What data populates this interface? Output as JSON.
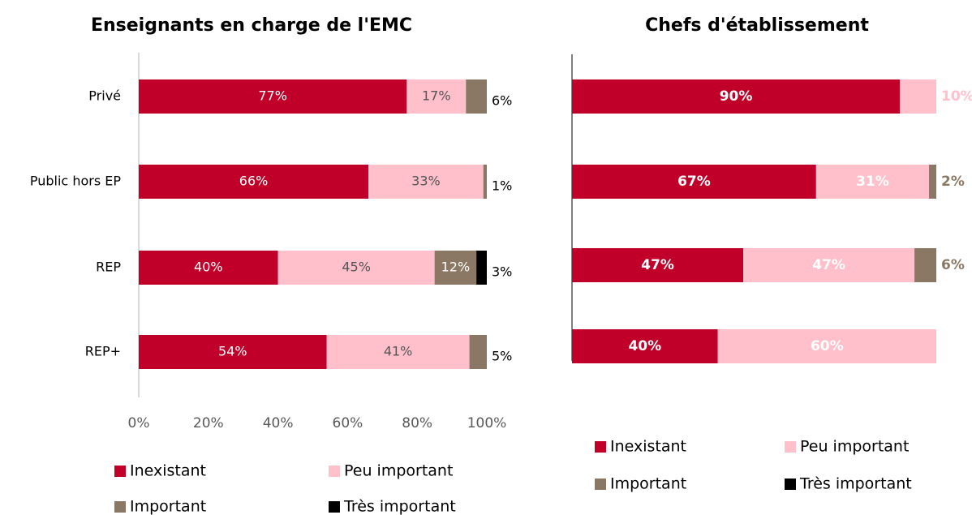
{
  "chart_data": [
    {
      "type": "stacked-barh",
      "title": "Enseignants en charge de l'EMC",
      "categories": [
        "Privé",
        "Public hors EP",
        "REP",
        "REP+"
      ],
      "series": [
        {
          "name": "Inexistant",
          "color": "#c00029",
          "values": [
            77,
            66,
            40,
            54
          ],
          "value_labels": [
            "77%",
            "66%",
            "40%",
            "54%"
          ]
        },
        {
          "name": "Peu important",
          "color": "#ffc0cb",
          "values": [
            17,
            33,
            45,
            41
          ],
          "value_labels": [
            "17%",
            "33%",
            "45%",
            "41%"
          ]
        },
        {
          "name": "Important",
          "color": "#8b7864",
          "values": [
            6,
            1,
            12,
            5
          ],
          "value_labels": [
            "6%",
            "1%",
            "12%",
            "5%"
          ]
        },
        {
          "name": "Très important",
          "color": "#000000",
          "values": [
            null,
            null,
            3,
            null
          ],
          "value_labels": [
            null,
            null,
            "3%",
            null
          ]
        }
      ],
      "xlim": [
        0,
        100
      ],
      "xticks": [
        {
          "value": 0,
          "label": "0%"
        },
        {
          "value": 20,
          "label": "20%"
        },
        {
          "value": 40,
          "label": "40%"
        },
        {
          "value": 60,
          "label": "60%"
        },
        {
          "value": 80,
          "label": "80%"
        },
        {
          "value": 100,
          "label": "100%"
        }
      ]
    },
    {
      "type": "stacked-barh",
      "title": "Chefs d'établissement",
      "series": [
        {
          "name": "Inexistant",
          "color": "#c00029",
          "values": [
            90,
            67,
            47,
            40
          ],
          "value_labels": [
            "90%",
            "67%",
            "47%",
            "40%"
          ]
        },
        {
          "name": "Peu important",
          "color": "#ffc0cb",
          "values": [
            10,
            31,
            47,
            60
          ],
          "value_labels": [
            "10%",
            "31%",
            "47%",
            "60%"
          ]
        },
        {
          "name": "Important",
          "color": "#8b7864",
          "values": [
            null,
            2,
            6,
            null
          ],
          "value_labels": [
            null,
            "2%",
            "6%",
            null
          ]
        },
        {
          "name": "Très important",
          "color": "#000000",
          "values": [
            null,
            null,
            null,
            null
          ],
          "value_labels": [
            null,
            null,
            null,
            null
          ]
        }
      ],
      "xlim": [
        0,
        100
      ]
    }
  ]
}
